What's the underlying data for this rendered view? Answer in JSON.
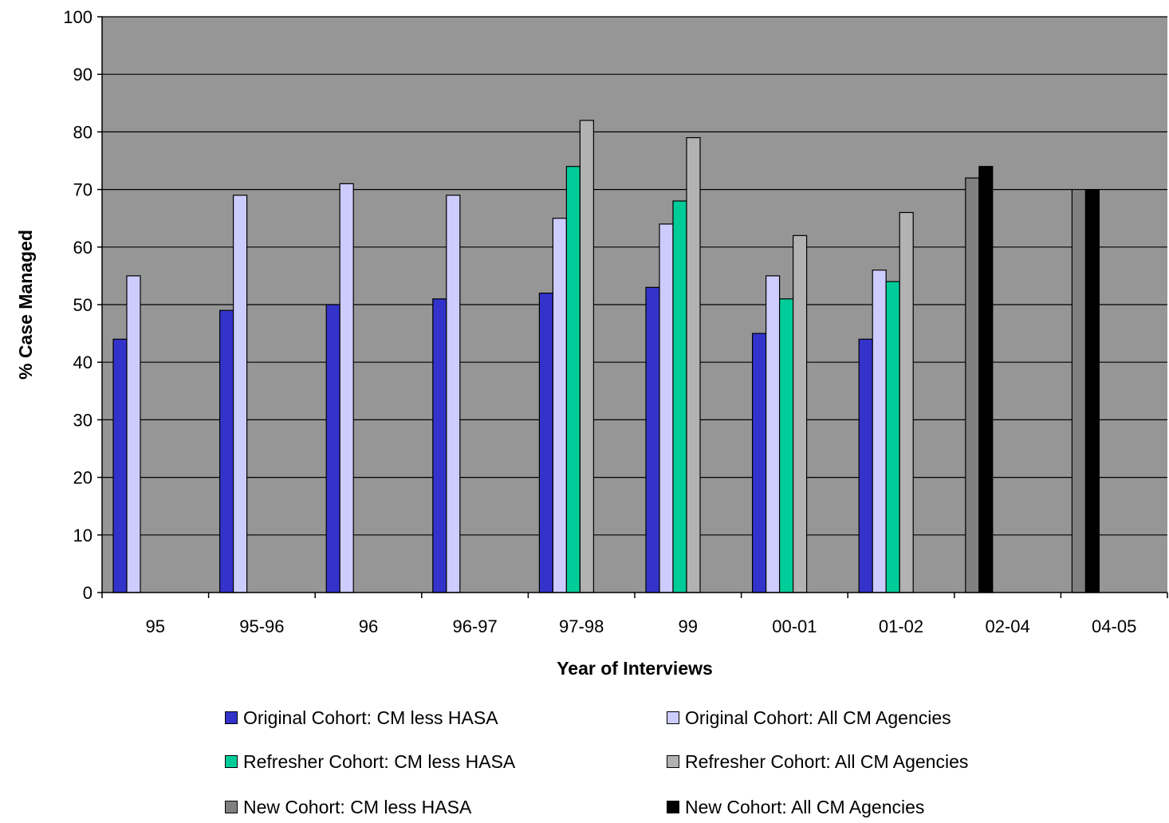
{
  "chart_data": {
    "type": "bar",
    "title": "",
    "xlabel": "Year of Interviews",
    "ylabel": "% Case Managed",
    "ylim": [
      0,
      100
    ],
    "yticks": [
      0,
      10,
      20,
      30,
      40,
      50,
      60,
      70,
      80,
      90,
      100
    ],
    "grid": true,
    "legend_position": "bottom",
    "plot_background": "#969696",
    "categories": [
      "95",
      "95-96",
      "96",
      "96-97",
      "97-98",
      "99",
      "00-01",
      "01-02",
      "02-04",
      "04-05"
    ],
    "series": [
      {
        "name": "Original Cohort: CM less HASA",
        "color": "#3333cc",
        "values": [
          44,
          49,
          50,
          51,
          52,
          53,
          45,
          44,
          null,
          null
        ]
      },
      {
        "name": "Original Cohort: All CM Agencies",
        "color": "#ccccff",
        "values": [
          55,
          69,
          71,
          69,
          65,
          64,
          55,
          56,
          null,
          null
        ]
      },
      {
        "name": "Refresher Cohort: CM less HASA",
        "color": "#00cc99",
        "values": [
          null,
          null,
          null,
          null,
          74,
          68,
          51,
          54,
          null,
          null
        ]
      },
      {
        "name": "Refresher Cohort: All CM Agencies",
        "color": "#b2b2b2",
        "values": [
          null,
          null,
          null,
          null,
          82,
          79,
          62,
          66,
          null,
          null
        ]
      },
      {
        "name": "New Cohort: CM less HASA",
        "color": "#808080",
        "values": [
          null,
          null,
          null,
          null,
          null,
          null,
          null,
          null,
          72,
          70
        ]
      },
      {
        "name": "New Cohort: All CM Agencies",
        "color": "#000000",
        "values": [
          null,
          null,
          null,
          null,
          null,
          null,
          null,
          null,
          74,
          70
        ]
      }
    ]
  }
}
